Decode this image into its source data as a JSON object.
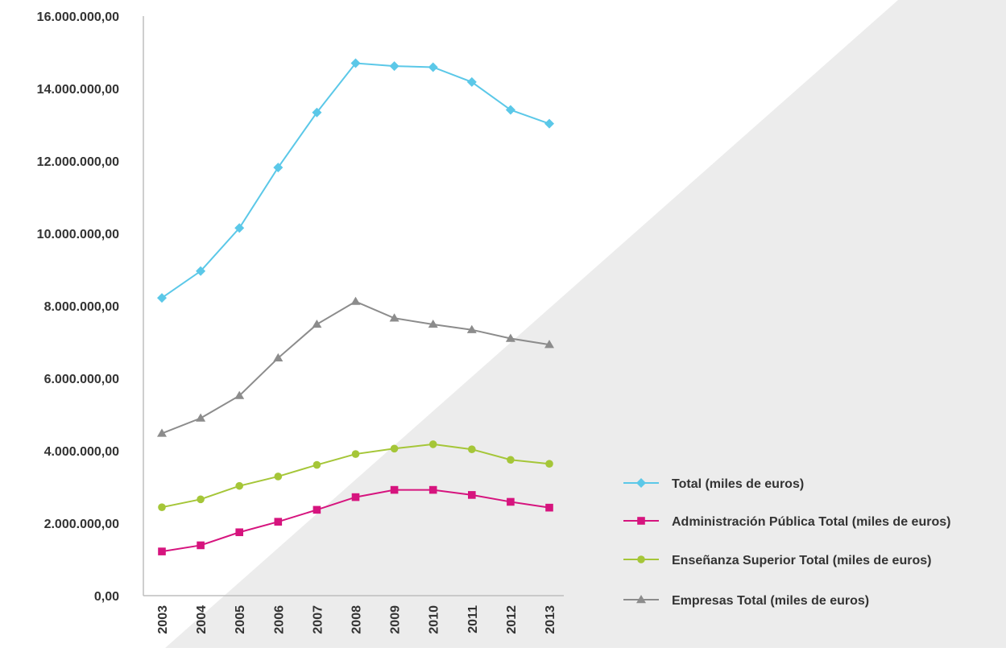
{
  "chart_data": {
    "type": "line",
    "x": [
      "2003",
      "2004",
      "2005",
      "2006",
      "2007",
      "2008",
      "2009",
      "2010",
      "2011",
      "2012",
      "2013"
    ],
    "ylim": [
      0,
      16000000
    ],
    "yticks": [
      0,
      2000000,
      4000000,
      6000000,
      8000000,
      10000000,
      12000000,
      14000000,
      16000000
    ],
    "ytick_labels": [
      "0,00",
      "2.000.000,00",
      "4.000.000,00",
      "6.000.000,00",
      "8.000.000,00",
      "10.000.000,00",
      "12.000.000,00",
      "14.000.000,00",
      "16.000.000,00"
    ],
    "grid": false,
    "legend_position": "bottom-right",
    "series": [
      {
        "name": "Total (miles de euros)",
        "color": "#5bc8e8",
        "marker": "diamond",
        "values": [
          8220000,
          8960000,
          10150000,
          11820000,
          13340000,
          14700000,
          14620000,
          14590000,
          14180000,
          13410000,
          13030000
        ]
      },
      {
        "name": "Administración Pública Total (miles de euros)",
        "color": "#d6147e",
        "marker": "square",
        "values": [
          1220000,
          1390000,
          1750000,
          2040000,
          2370000,
          2720000,
          2920000,
          2920000,
          2780000,
          2590000,
          2430000
        ]
      },
      {
        "name": "Enseñanza Superior Total (miles de euros)",
        "color": "#a5c638",
        "marker": "circle",
        "values": [
          2440000,
          2660000,
          3030000,
          3290000,
          3610000,
          3910000,
          4060000,
          4180000,
          4040000,
          3750000,
          3640000
        ]
      },
      {
        "name": "Empresas Total (miles de euros)",
        "color": "#8c8c8c",
        "marker": "triangle",
        "values": [
          4480000,
          4900000,
          5520000,
          6560000,
          7490000,
          8120000,
          7660000,
          7490000,
          7340000,
          7100000,
          6930000
        ]
      }
    ],
    "background_band_color": "#ececec"
  }
}
